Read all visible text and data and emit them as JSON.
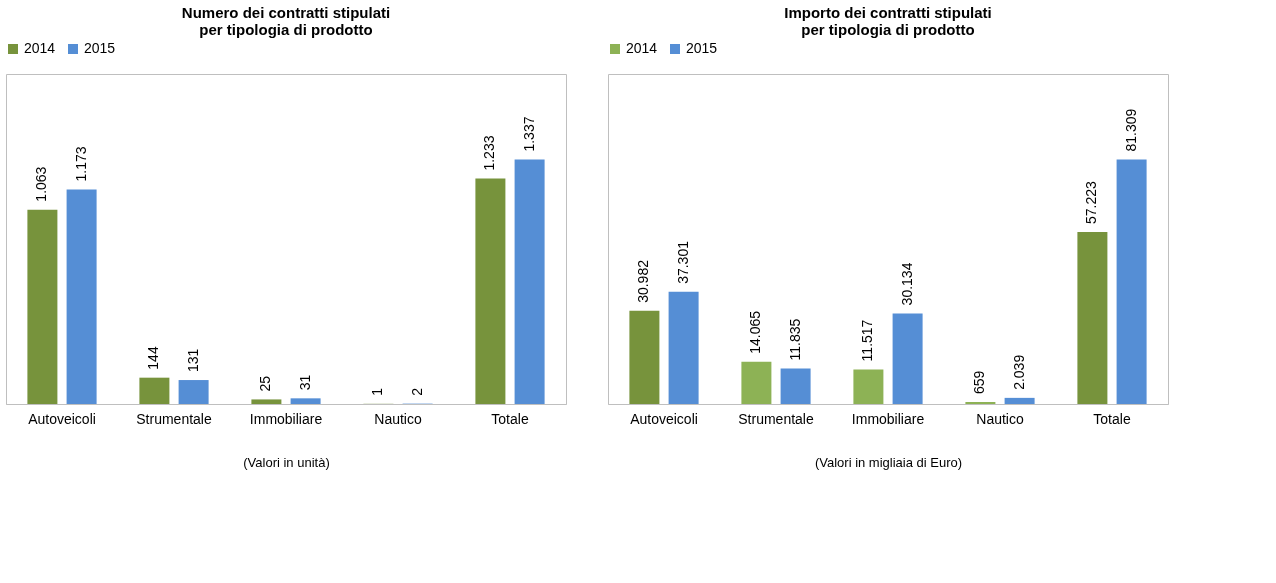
{
  "chart_data": [
    {
      "type": "bar",
      "title": "Numero dei contratti stipulati\nper tipologia di prodotto",
      "categories": [
        "Autoveicoli",
        "Strumentale",
        "Immobiliare",
        "Nautico",
        "Totale"
      ],
      "legend": "top",
      "series": [
        {
          "name": "2014",
          "color": "#77933c",
          "values": [
            1063,
            144,
            25,
            1,
            1233
          ],
          "value_labels": [
            "1.063",
            "144",
            "25",
            "1",
            "1.233"
          ]
        },
        {
          "name": "2015",
          "color": "#558ed5",
          "values": [
            1173,
            131,
            31,
            2,
            1337
          ],
          "value_labels": [
            "1.173",
            "131",
            "31",
            "2",
            "1.337"
          ]
        }
      ],
      "annotations": [
        "(Valori in unità)"
      ]
    },
    {
      "type": "bar",
      "title": "Importo dei contratti stipulati\nper tipologia di prodotto",
      "categories": [
        "Autoveicoli",
        "Strumentale",
        "Immobiliare",
        "Nautico",
        "Totale"
      ],
      "legend": "top",
      "series": [
        {
          "name": "2014",
          "color": "#8db255",
          "colors": [
            "#77933c",
            "#8db255",
            "#8db255",
            "#8db255",
            "#77933c"
          ],
          "values": [
            30982,
            14065,
            11517,
            659,
            57223
          ],
          "value_labels": [
            "30.982",
            "14.065",
            "11.517",
            "659",
            "57.223"
          ]
        },
        {
          "name": "2015",
          "color": "#558ed5",
          "values": [
            37301,
            11835,
            30134,
            2039,
            81309
          ],
          "value_labels": [
            "37.301",
            "11.835",
            "30.134",
            "2.039",
            "81.309"
          ]
        }
      ],
      "annotations": [
        "(Valori in migliaia di Euro)"
      ]
    }
  ]
}
